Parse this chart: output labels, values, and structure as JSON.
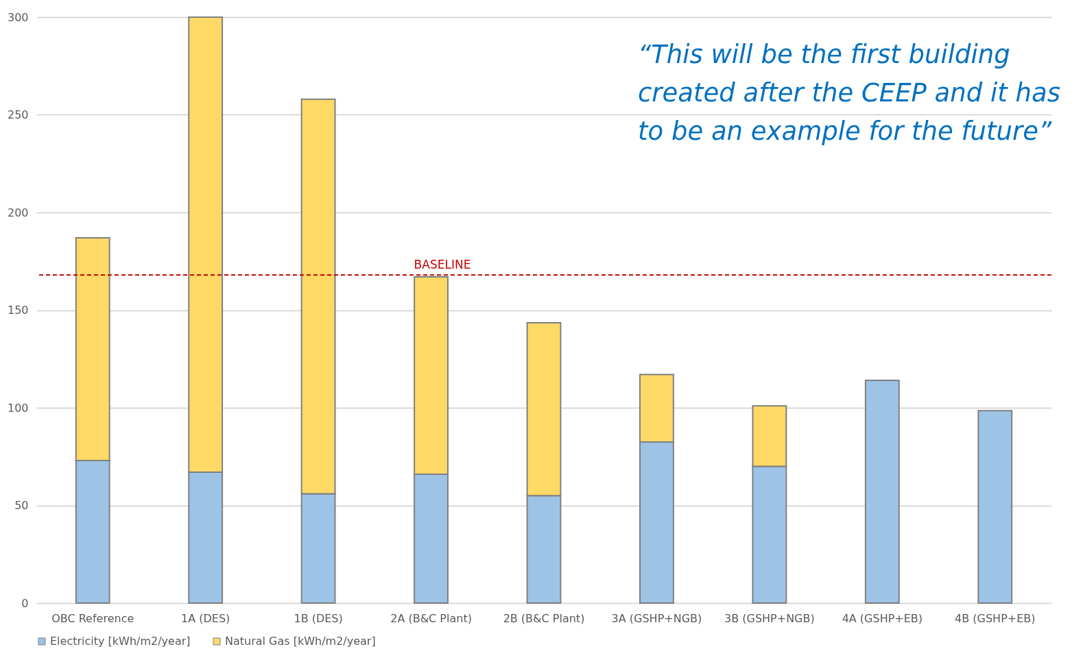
{
  "chart_data": {
    "type": "bar",
    "stacked": true,
    "categories": [
      "OBC Reference",
      "1A (DES)",
      "1B (DES)",
      "2A (B&C Plant)",
      "2B (B&C Plant)",
      "3A (GSHP+NGB)",
      "3B (GSHP+NGB)",
      "4A (GSHP+EB)",
      "4B (GSHP+EB)"
    ],
    "series": [
      {
        "name": "Electricity [kWh/m2/year]",
        "color": "#9dc3e6",
        "values": [
          73,
          67,
          56,
          66,
          55,
          82.5,
          70,
          114,
          98.5
        ]
      },
      {
        "name": "Natural Gas [kWh/m2/year]",
        "color": "#ffd966",
        "values": [
          114,
          233,
          202,
          101,
          88.5,
          34.5,
          31,
          null,
          null
        ]
      }
    ],
    "ylim": [
      0,
      300
    ],
    "yticks": [
      0,
      50,
      100,
      150,
      200,
      250,
      300
    ],
    "grid": "y",
    "legend": "bottom",
    "ref_lines": [
      {
        "axis": "y",
        "value": 168,
        "label": "BASELINE",
        "color": "#c00000",
        "line_style": "dashed"
      }
    ],
    "annotations": [
      "“This will be the first building created after the CEEP and it has to be an example for the future”"
    ]
  }
}
